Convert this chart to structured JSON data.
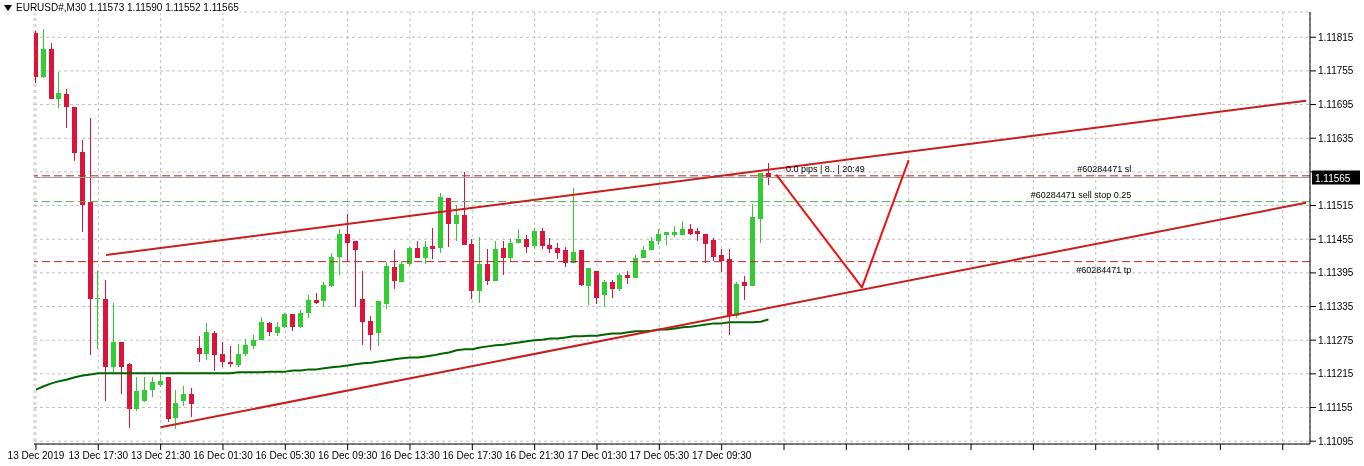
{
  "chart_data": {
    "type": "candlestick",
    "title": "EURUSD#,M30  1.11573 1.11590 1.11552 1.11565",
    "categories": [
      "13 Dec 2019",
      null,
      null,
      null,
      null,
      null,
      null,
      null,
      "13 Dec 17:30",
      null,
      null,
      null,
      null,
      null,
      null,
      null,
      "13 Dec 21:30",
      null,
      null,
      null,
      null,
      null,
      null,
      null,
      "16 Dec 01:30",
      null,
      null,
      null,
      null,
      null,
      null,
      null,
      "16 Dec 05:30",
      null,
      null,
      null,
      null,
      null,
      null,
      null,
      "16 Dec 09:30",
      null,
      null,
      null,
      null,
      null,
      null,
      null,
      "16 Dec 13:30",
      null,
      null,
      null,
      null,
      null,
      null,
      null,
      "16 Dec 17:30",
      null,
      null,
      null,
      null,
      null,
      null,
      null,
      "16 Dec 21:30",
      null,
      null,
      null,
      null,
      null,
      null,
      null,
      "17 Dec 01:30",
      null,
      null,
      null,
      null,
      null,
      null,
      null,
      "17 Dec 05:30",
      null,
      null,
      null,
      null,
      null,
      null,
      null,
      "17 Dec 09:30",
      null,
      null,
      null,
      null,
      null,
      null,
      null,
      null,
      null,
      null,
      null,
      null,
      null,
      null,
      null,
      null,
      null,
      null,
      null,
      null,
      null,
      null,
      null,
      null,
      null,
      null,
      null,
      null,
      null,
      null,
      null,
      null,
      null,
      null,
      null,
      null,
      null,
      null,
      null,
      null,
      null,
      null,
      null,
      null,
      null,
      null,
      null,
      null,
      null,
      null,
      null,
      null,
      null,
      null,
      null,
      null,
      null,
      null,
      null,
      null,
      null,
      null,
      null,
      null,
      null,
      null,
      null,
      null,
      null,
      null,
      null,
      null,
      null,
      null,
      null
    ],
    "ohlc": [
      [
        1.11822,
        1.11827,
        1.11733,
        1.11744
      ],
      [
        1.11744,
        1.11829,
        1.11742,
        1.11794
      ],
      [
        1.11794,
        1.11804,
        1.11705,
        1.11705
      ],
      [
        1.11705,
        1.11753,
        1.11689,
        1.11715
      ],
      [
        1.11714,
        1.11723,
        1.11653,
        1.11691
      ],
      [
        1.11691,
        1.11691,
        1.11595,
        1.11609
      ],
      [
        1.11611,
        1.11632,
        1.11467,
        1.11516
      ],
      [
        1.11522,
        1.11671,
        1.11248,
        1.11349
      ],
      [
        1.11349,
        1.11399,
        1.11259,
        1.11351
      ],
      [
        1.11349,
        1.11383,
        1.11166,
        1.11228
      ],
      [
        1.11228,
        1.11342,
        1.11218,
        1.11271
      ],
      [
        1.11271,
        1.11271,
        1.11179,
        1.11228
      ],
      [
        1.11232,
        1.11235,
        1.11118,
        1.11152
      ],
      [
        1.11152,
        1.11209,
        1.11148,
        1.11184
      ],
      [
        1.11166,
        1.11209,
        1.11164,
        1.11187
      ],
      [
        1.11187,
        1.11209,
        1.11173,
        1.112
      ],
      [
        1.11195,
        1.11218,
        1.11191,
        1.11203
      ],
      [
        1.11209,
        1.11209,
        1.11129,
        1.11134
      ],
      [
        1.11136,
        1.11187,
        1.11116,
        1.11163
      ],
      [
        1.11166,
        1.11193,
        1.11157,
        1.11179
      ],
      [
        1.11179,
        1.11189,
        1.11139,
        1.11161
      ],
      [
        1.11262,
        1.11282,
        1.11237,
        1.11251
      ],
      [
        1.1125,
        1.11305,
        1.11239,
        1.11289
      ],
      [
        1.11287,
        1.11292,
        1.11221,
        1.11248
      ],
      [
        1.11251,
        1.11271,
        1.11228,
        1.11237
      ],
      [
        1.11237,
        1.11264,
        1.11228,
        1.11232
      ],
      [
        1.1123,
        1.11269,
        1.11227,
        1.11251
      ],
      [
        1.11251,
        1.11278,
        1.11246,
        1.11266
      ],
      [
        1.11264,
        1.11285,
        1.1126,
        1.11276
      ],
      [
        1.11276,
        1.11317,
        1.11275,
        1.11307
      ],
      [
        1.11305,
        1.11308,
        1.11283,
        1.11289
      ],
      [
        1.11287,
        1.11307,
        1.11283,
        1.11299
      ],
      [
        1.11299,
        1.11324,
        1.11296,
        1.11321
      ],
      [
        1.11321,
        1.11321,
        1.11292,
        1.11299
      ],
      [
        1.11299,
        1.11328,
        1.11296,
        1.11324
      ],
      [
        1.11323,
        1.11356,
        1.11315,
        1.11346
      ],
      [
        1.11346,
        1.1136,
        1.11339,
        1.11342
      ],
      [
        1.11344,
        1.11378,
        1.11335,
        1.11374
      ],
      [
        1.11372,
        1.11431,
        1.11369,
        1.11424
      ],
      [
        1.11424,
        1.11474,
        1.11392,
        1.11465
      ],
      [
        1.11465,
        1.115,
        1.11415,
        1.11449
      ],
      [
        1.11451,
        1.11451,
        1.11335,
        1.11436
      ],
      [
        1.11349,
        1.11399,
        1.11266,
        1.11308
      ],
      [
        1.1131,
        1.11319,
        1.11257,
        1.11285
      ],
      [
        1.11287,
        1.11344,
        1.11264,
        1.11344
      ],
      [
        1.1134,
        1.11415,
        1.11331,
        1.11408
      ],
      [
        1.11406,
        1.11435,
        1.11367,
        1.11381
      ],
      [
        1.11379,
        1.11417,
        1.11379,
        1.1141
      ],
      [
        1.1141,
        1.11442,
        1.11408,
        1.1144
      ],
      [
        1.1144,
        1.11451,
        1.11422,
        1.11422
      ],
      [
        1.11422,
        1.11451,
        1.11411,
        1.11442
      ],
      [
        1.11443,
        1.11475,
        1.11419,
        1.11438
      ],
      [
        1.1144,
        1.11538,
        1.11431,
        1.11531
      ],
      [
        1.11529,
        1.11529,
        1.11442,
        1.11483
      ],
      [
        1.11483,
        1.11516,
        1.11451,
        1.11499
      ],
      [
        1.11499,
        1.11575,
        1.11445,
        1.11445
      ],
      [
        1.11447,
        1.11456,
        1.11349,
        1.11362
      ],
      [
        1.11362,
        1.11459,
        1.11342,
        1.11411
      ],
      [
        1.11411,
        1.11438,
        1.11374,
        1.11381
      ],
      [
        1.11381,
        1.11452,
        1.11381,
        1.11438
      ],
      [
        1.1144,
        1.11451,
        1.11392,
        1.11422
      ],
      [
        1.11422,
        1.11456,
        1.11415,
        1.11449
      ],
      [
        1.11449,
        1.11474,
        1.11449,
        1.11456
      ],
      [
        1.11456,
        1.11463,
        1.11431,
        1.11442
      ],
      [
        1.11443,
        1.11475,
        1.11438,
        1.1147
      ],
      [
        1.1147,
        1.11475,
        1.11438,
        1.11443
      ],
      [
        1.11445,
        1.11458,
        1.11431,
        1.11438
      ],
      [
        1.1144,
        1.11449,
        1.11419,
        1.11431
      ],
      [
        1.11435,
        1.11442,
        1.11406,
        1.11413
      ],
      [
        1.11413,
        1.11547,
        1.11413,
        1.11433
      ],
      [
        1.11435,
        1.11435,
        1.11371,
        1.11374
      ],
      [
        1.11371,
        1.11404,
        1.11337,
        1.11403
      ],
      [
        1.11399,
        1.11399,
        1.11339,
        1.11351
      ],
      [
        1.11356,
        1.11383,
        1.11335,
        1.11378
      ],
      [
        1.11378,
        1.11383,
        1.11351,
        1.11367
      ],
      [
        1.11367,
        1.11395,
        1.11362,
        1.11392
      ],
      [
        1.11392,
        1.11399,
        1.11376,
        1.11385
      ],
      [
        1.11385,
        1.11427,
        1.11385,
        1.11422
      ],
      [
        1.11422,
        1.11443,
        1.11422,
        1.11436
      ],
      [
        1.11436,
        1.11459,
        1.11436,
        1.11452
      ],
      [
        1.11451,
        1.11474,
        1.11445,
        1.11465
      ],
      [
        1.11463,
        1.11468,
        1.11445,
        1.11468
      ],
      [
        1.11463,
        1.11479,
        1.11459,
        1.11468
      ],
      [
        1.11463,
        1.11488,
        1.11463,
        1.11474
      ],
      [
        1.11474,
        1.11483,
        1.11463,
        1.11465
      ],
      [
        1.1147,
        1.11475,
        1.11452,
        1.11465
      ],
      [
        1.11465,
        1.11465,
        1.11413,
        1.11447
      ],
      [
        1.11454,
        1.11458,
        1.11417,
        1.11424
      ],
      [
        1.11426,
        1.11438,
        1.11397,
        1.11417
      ],
      [
        1.11419,
        1.11438,
        1.11285,
        1.11319
      ],
      [
        1.11319,
        1.11378,
        1.11314,
        1.11376
      ],
      [
        1.11378,
        1.1139,
        1.11347,
        1.11371
      ],
      [
        1.11371,
        1.11518,
        1.11371,
        1.11495
      ],
      [
        1.11491,
        1.11573,
        1.11449,
        1.11573
      ],
      [
        1.11573,
        1.1159,
        1.11552,
        1.11565
      ],
      null,
      null,
      null,
      null,
      null,
      null,
      null,
      null,
      null,
      null,
      null,
      null,
      null,
      null,
      null,
      null,
      null,
      null,
      null,
      null,
      null,
      null,
      null,
      null,
      null,
      null,
      null,
      null,
      null,
      null,
      null,
      null,
      null,
      null,
      null,
      null,
      null,
      null,
      null,
      null,
      null,
      null,
      null,
      null,
      null,
      null,
      null,
      null,
      null,
      null,
      null,
      null,
      null,
      null,
      null,
      null,
      null,
      null,
      null,
      null,
      null,
      null,
      null,
      null,
      null,
      null,
      null,
      null,
      null
    ],
    "colors": [
      "#dc143c",
      "#32cd32",
      "#dc143c",
      "#32cd32",
      "#dc143c",
      "#dc143c",
      "#dc143c",
      "#dc143c",
      "#32cd32",
      "#dc143c",
      "#32cd32",
      "#dc143c",
      "#dc143c",
      "#32cd32",
      "#32cd32",
      "#32cd32",
      "#32cd32",
      "#dc143c",
      "#32cd32",
      "#32cd32",
      "#dc143c",
      "#dc143c",
      "#32cd32",
      "#dc143c",
      "#dc143c",
      "#dc143c",
      "#32cd32",
      "#32cd32",
      "#32cd32",
      "#32cd32",
      "#dc143c",
      "#32cd32",
      "#32cd32",
      "#dc143c",
      "#32cd32",
      "#32cd32",
      "#dc143c",
      "#32cd32",
      "#32cd32",
      "#32cd32",
      "#dc143c",
      "#dc143c",
      "#dc143c",
      "#dc143c",
      "#32cd32",
      "#32cd32",
      "#dc143c",
      "#32cd32",
      "#32cd32",
      "#dc143c",
      "#32cd32",
      "#dc143c",
      "#32cd32",
      "#dc143c",
      "#32cd32",
      "#dc143c",
      "#dc143c",
      "#32cd32",
      "#dc143c",
      "#32cd32",
      "#dc143c",
      "#32cd32",
      "#32cd32",
      "#dc143c",
      "#32cd32",
      "#dc143c",
      "#dc143c",
      "#dc143c",
      "#dc143c",
      "#32cd32",
      "#dc143c",
      "#32cd32",
      "#dc143c",
      "#32cd32",
      "#dc143c",
      "#32cd32",
      "#dc143c",
      "#32cd32",
      "#32cd32",
      "#32cd32",
      "#32cd32",
      "#32cd32",
      "#32cd32",
      "#32cd32",
      "#dc143c",
      "#dc143c",
      "#dc143c",
      "#dc143c",
      "#dc143c",
      "#dc143c",
      "#32cd32",
      "#dc143c",
      "#32cd32",
      "#32cd32",
      "#dc143c",
      null,
      null,
      null,
      null,
      null,
      null,
      null,
      null,
      null,
      null,
      null,
      null,
      null,
      null,
      null,
      null,
      null,
      null,
      null,
      null,
      null,
      null,
      null,
      null,
      null,
      null,
      null,
      null,
      null,
      null,
      null,
      null,
      null,
      null,
      null,
      null,
      null,
      null,
      null,
      null,
      null,
      null,
      null,
      null,
      null,
      null,
      null,
      null,
      null,
      null,
      null,
      null,
      null,
      null,
      null,
      null,
      null,
      null,
      null,
      null,
      null,
      null,
      null,
      null,
      null,
      null,
      null,
      null,
      null
    ],
    "series": [
      {
        "type": "line",
        "color": "#006400",
        "values": [
          1.11187,
          1.11193,
          1.11198,
          1.11202,
          1.11205,
          1.11209,
          1.11212,
          1.11214,
          1.11216,
          1.11216,
          1.11216,
          1.11216,
          1.11216,
          1.11216,
          1.11216,
          1.11216,
          1.11216,
          1.11216,
          1.11216,
          1.11216,
          1.11216,
          1.11216,
          1.11216,
          1.11216,
          1.11216,
          1.11216,
          1.11218,
          1.11218,
          1.11218,
          1.11218,
          1.11219,
          1.11219,
          1.11219,
          1.11221,
          1.11221,
          1.11223,
          1.11223,
          1.11225,
          1.11227,
          1.11228,
          1.1123,
          1.11232,
          1.11234,
          1.11235,
          1.11237,
          1.11239,
          1.11241,
          1.11243,
          1.11244,
          1.11244,
          1.11246,
          1.11248,
          1.11251,
          1.11253,
          1.11257,
          1.11259,
          1.11259,
          1.11262,
          1.11264,
          1.11266,
          1.11267,
          1.11269,
          1.11271,
          1.11273,
          1.11275,
          1.11276,
          1.11278,
          1.11278,
          1.1128,
          1.11282,
          1.11282,
          1.11283,
          1.11283,
          1.11285,
          1.11287,
          1.11287,
          1.11289,
          1.11291,
          1.11291,
          1.11292,
          1.11294,
          1.11294,
          1.11296,
          1.11298,
          1.11299,
          1.11301,
          1.11303,
          1.11305,
          1.11305,
          1.11307,
          1.11307,
          1.11307,
          1.11307,
          1.11308,
          1.11312,
          null,
          null,
          null,
          null,
          null,
          null,
          null,
          null,
          null,
          null,
          null,
          null,
          null,
          null,
          null,
          null,
          null,
          null,
          null,
          null,
          null,
          null,
          null,
          null,
          null,
          null,
          null,
          null,
          null,
          null,
          null,
          null,
          null,
          null,
          null,
          null,
          null,
          null,
          null,
          null,
          null,
          null,
          null,
          null,
          null,
          null,
          null,
          null,
          null,
          null,
          null,
          null,
          null,
          null,
          null,
          null,
          null,
          null,
          null,
          null,
          null,
          null,
          null,
          null,
          null,
          null,
          null,
          null,
          null
        ]
      },
      {
        "type": "line",
        "color": "#c81e1e",
        "values": [
          null,
          null,
          null,
          null,
          null,
          null,
          null,
          null,
          null,
          1.11427,
          null,
          null,
          null,
          null,
          null,
          null,
          null,
          null,
          null,
          null,
          null,
          null,
          null,
          null,
          null,
          null,
          null,
          null,
          null,
          null,
          null,
          null,
          null,
          null,
          null,
          null,
          null,
          null,
          null,
          null,
          null,
          null,
          null,
          null,
          null,
          null,
          null,
          null,
          null,
          null,
          null,
          null,
          null,
          null,
          null,
          null,
          null,
          null,
          null,
          null,
          null,
          null,
          null,
          null,
          null,
          null,
          null,
          null,
          null,
          null,
          null,
          null,
          null,
          null,
          null,
          null,
          null,
          null,
          null,
          null,
          null,
          null,
          null,
          null,
          null,
          null,
          null,
          null,
          null,
          null,
          null,
          null,
          null,
          null,
          null,
          null,
          null,
          null,
          null,
          null,
          null,
          null,
          null,
          null,
          null,
          null,
          null,
          null,
          null,
          null,
          null,
          null,
          null,
          null,
          null,
          null,
          null,
          null,
          null,
          null,
          null,
          null,
          null,
          null,
          null,
          null,
          null,
          null,
          null,
          null,
          null,
          null,
          null,
          null,
          null,
          null,
          null,
          null,
          null,
          null,
          null,
          null,
          null,
          null,
          null,
          null,
          null,
          null,
          null,
          null,
          null,
          null,
          null,
          null,
          null,
          null,
          null,
          null,
          null,
          null,
          null,
          null,
          null,
          1.11702
        ]
      },
      {
        "type": "line",
        "color": "#c81e1e",
        "values": [
          null,
          null,
          null,
          null,
          null,
          null,
          null,
          null,
          null,
          null,
          null,
          null,
          null,
          null,
          null,
          null,
          1.1112,
          null,
          null,
          null,
          null,
          null,
          null,
          null,
          null,
          null,
          null,
          null,
          null,
          null,
          null,
          null,
          null,
          null,
          null,
          null,
          null,
          null,
          null,
          null,
          null,
          null,
          null,
          null,
          null,
          null,
          null,
          null,
          null,
          null,
          null,
          null,
          null,
          null,
          null,
          null,
          null,
          null,
          null,
          null,
          null,
          null,
          null,
          null,
          null,
          null,
          null,
          null,
          null,
          null,
          null,
          null,
          null,
          null,
          null,
          null,
          null,
          null,
          null,
          null,
          null,
          null,
          null,
          null,
          null,
          null,
          null,
          null,
          null,
          null,
          null,
          null,
          null,
          null,
          null,
          null,
          null,
          null,
          null,
          null,
          null,
          null,
          null,
          null,
          null,
          null,
          null,
          null,
          null,
          null,
          null,
          null,
          null,
          null,
          null,
          null,
          null,
          null,
          null,
          null,
          null,
          null,
          null,
          null,
          null,
          null,
          null,
          null,
          null,
          null,
          null,
          null,
          null,
          null,
          null,
          null,
          null,
          null,
          null,
          null,
          null,
          null,
          null,
          null,
          null,
          null,
          null,
          null,
          null,
          null,
          null,
          null,
          null,
          null,
          null,
          null,
          null,
          null,
          null,
          null,
          null,
          null,
          null,
          1.1152
        ]
      },
      {
        "type": "line",
        "color": "#ee1111",
        "values": [
          null,
          null,
          null,
          null,
          null,
          null,
          null,
          null,
          null,
          null,
          null,
          null,
          null,
          null,
          null,
          null,
          null,
          null,
          null,
          null,
          null,
          null,
          null,
          null,
          null,
          null,
          null,
          null,
          null,
          null,
          null,
          null,
          null,
          null,
          null,
          null,
          null,
          null,
          null,
          null,
          null,
          null,
          null,
          null,
          null,
          null,
          null,
          null,
          null,
          null,
          null,
          null,
          null,
          null,
          null,
          null,
          null,
          null,
          null,
          null,
          null,
          null,
          null,
          null,
          null,
          null,
          null,
          null,
          null,
          null,
          null,
          null,
          null,
          null,
          null,
          null,
          null,
          null,
          null,
          null,
          null,
          null,
          null,
          null,
          null,
          null,
          null,
          null,
          null,
          null,
          null,
          null,
          null,
          null,
          null,
          1.1157,
          null,
          null,
          null,
          null,
          null,
          null,
          null,
          null,
          null,
          null,
          1.11369,
          null,
          null,
          null,
          null,
          null,
          1.11596,
          null,
          null,
          null,
          null,
          null,
          null,
          null,
          null,
          null,
          null,
          null,
          null,
          null,
          null,
          null,
          null,
          null,
          null,
          null,
          null,
          null,
          null,
          null,
          null,
          null,
          null,
          null,
          null,
          null,
          null,
          null,
          null,
          null,
          null,
          null,
          null,
          null,
          null,
          null,
          null,
          null,
          null,
          null,
          null,
          null,
          null,
          null,
          null,
          null,
          null,
          null
        ]
      }
    ],
    "ref_lines": [
      {
        "axis": "y",
        "value": 1.11568,
        "label": "#60284471 sl",
        "color": "#c81e1e",
        "line_style": "dashed"
      },
      {
        "axis": "y",
        "value": 1.11522,
        "label": "#60284471 sell stop 0.25",
        "color": "#4caf50",
        "line_style": "dashed"
      },
      {
        "axis": "y",
        "value": 1.11415,
        "label": "#60284471 tp",
        "color": "#c81e1e",
        "line_style": "dashed"
      },
      {
        "axis": "y",
        "value": 1.11565,
        "label": "1.11565",
        "color": "#a0a0a0",
        "line_style": "solid"
      }
    ],
    "annotations": [
      "0.0 pips | 8.. | 20:49"
    ],
    "ylim": [
      1.1109,
      1.1186
    ],
    "yticks": [
      1.11095,
      1.11155,
      1.11215,
      1.11275,
      1.11335,
      1.11395,
      1.11455,
      1.11515,
      {
        "value": 1.11575,
        "label": null
      },
      1.11635,
      1.11695,
      1.11755,
      1.11815
    ],
    "grid": true
  }
}
